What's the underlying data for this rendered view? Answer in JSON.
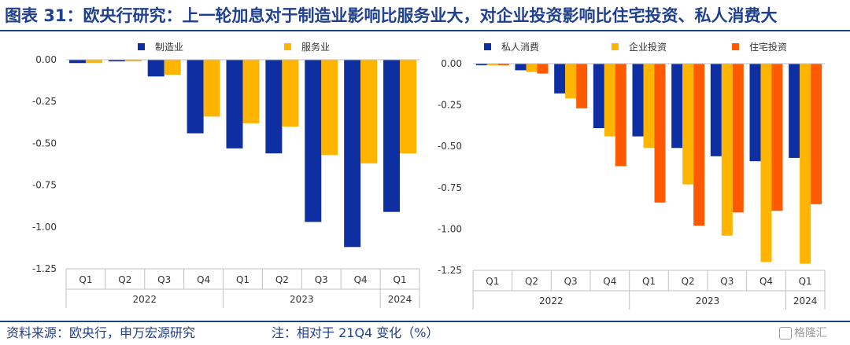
{
  "title": "图表 31：欧央行研究：上一轮加息对于制造业影响比服务业大，对企业投资影响比住宅投资、私人消费大",
  "footer": {
    "source": "资料来源：欧央行，申万宏源研究",
    "note": "注：相对于 21Q4 变化（%）",
    "watermark": "格隆汇"
  },
  "colors": {
    "navy": "#0d2fa1",
    "gold": "#ffb400",
    "orange": "#ff5a00",
    "title": "#1f3f8f"
  },
  "chart_data": [
    {
      "type": "bar",
      "categories": [
        "Q1",
        "Q2",
        "Q3",
        "Q4",
        "Q1",
        "Q2",
        "Q3",
        "Q4",
        "Q1"
      ],
      "year_groups": [
        {
          "label": "2022",
          "span": 4
        },
        {
          "label": "2023",
          "span": 4
        },
        {
          "label": "2024",
          "span": 1
        }
      ],
      "series": [
        {
          "name": "制造业",
          "color": "#0d2fa1",
          "values": [
            -0.02,
            -0.01,
            -0.1,
            -0.44,
            -0.53,
            -0.56,
            -0.97,
            -1.12,
            -0.91
          ]
        },
        {
          "name": "服务业",
          "color": "#ffb400",
          "values": [
            -0.02,
            -0.01,
            -0.09,
            -0.34,
            -0.38,
            -0.4,
            -0.57,
            -0.62,
            -0.56
          ]
        }
      ],
      "yticks": [
        0.0,
        -0.25,
        -0.5,
        -0.75,
        -1.0,
        -1.25
      ],
      "ytick_labels": [
        "0.00",
        "-0.25",
        "-0.50",
        "-0.75",
        "-1.00",
        "-1.25"
      ],
      "ylim": [
        -1.25,
        0.0
      ],
      "legend_position": "top"
    },
    {
      "type": "bar",
      "categories": [
        "Q1",
        "Q2",
        "Q3",
        "Q4",
        "Q1",
        "Q2",
        "Q3",
        "Q4",
        "Q1"
      ],
      "year_groups": [
        {
          "label": "2022",
          "span": 4
        },
        {
          "label": "2023",
          "span": 4
        },
        {
          "label": "2024",
          "span": 1
        }
      ],
      "series": [
        {
          "name": "私人消费",
          "color": "#0d2fa1",
          "values": [
            -0.01,
            -0.04,
            -0.18,
            -0.39,
            -0.44,
            -0.51,
            -0.56,
            -0.59,
            -0.57
          ]
        },
        {
          "name": "企业投资",
          "color": "#ffb400",
          "values": [
            -0.01,
            -0.05,
            -0.21,
            -0.44,
            -0.51,
            -0.73,
            -1.04,
            -1.2,
            -1.21
          ]
        },
        {
          "name": "住宅投资",
          "color": "#ff5a00",
          "values": [
            -0.01,
            -0.06,
            -0.27,
            -0.62,
            -0.84,
            -0.98,
            -0.9,
            -0.89,
            -0.85
          ]
        }
      ],
      "yticks": [
        0.0,
        -0.25,
        -0.5,
        -0.75,
        -1.0,
        -1.25
      ],
      "ytick_labels": [
        "0.00",
        "-0.25",
        "-0.50",
        "-0.75",
        "-1.00",
        "-1.25"
      ],
      "ylim": [
        -1.25,
        0.0
      ],
      "legend_position": "top"
    }
  ]
}
